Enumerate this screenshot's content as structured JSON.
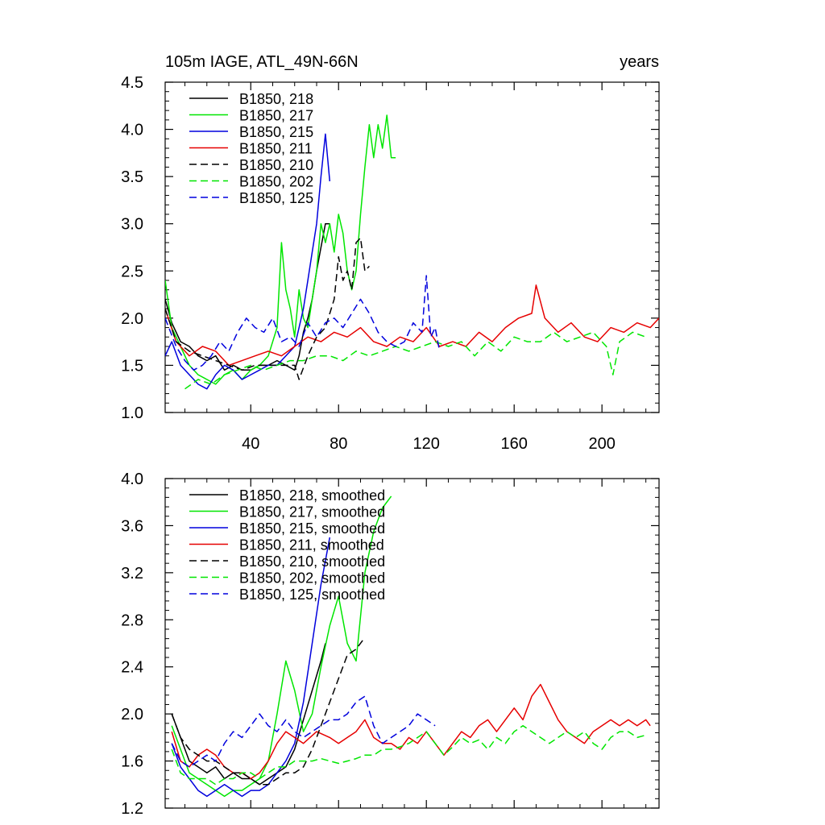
{
  "figure": {
    "title_left": "105m IAGE, ATL_49N-66N",
    "title_right": "years"
  },
  "colors": {
    "black": "#000000",
    "green": "#00e600",
    "blue": "#0000dd",
    "red": "#e60000"
  },
  "chart_data": [
    {
      "type": "line",
      "title": "105m IAGE, ATL_49N-66N",
      "units": "years",
      "xlim": [
        1,
        226
      ],
      "ylim": [
        1.0,
        4.5
      ],
      "xticks": [
        40,
        80,
        120,
        160,
        200
      ],
      "yticks": [
        1.0,
        1.5,
        2.0,
        2.5,
        3.0,
        3.5,
        4.0,
        4.5
      ],
      "ytick_labels": [
        "1.0",
        "1.5",
        "2.0",
        "2.5",
        "3.0",
        "3.5",
        "4.0",
        "4.5"
      ],
      "legend_position": "top-left",
      "series": [
        {
          "name": "B1850, 218",
          "color": "black",
          "dash": false,
          "x": [
            1,
            4,
            8,
            12,
            16,
            20,
            24,
            28,
            32,
            36,
            40,
            44,
            48,
            52,
            56,
            60,
            62,
            64,
            66,
            68,
            70,
            72,
            74,
            76
          ],
          "y": [
            2.2,
            1.95,
            1.75,
            1.7,
            1.6,
            1.55,
            1.6,
            1.45,
            1.5,
            1.45,
            1.45,
            1.5,
            1.5,
            1.55,
            1.5,
            1.45,
            1.6,
            1.85,
            2.0,
            2.2,
            2.5,
            2.75,
            3.0,
            3.0
          ]
        },
        {
          "name": "B1850, 217",
          "color": "green",
          "dash": false,
          "x": [
            1,
            4,
            8,
            12,
            16,
            20,
            24,
            28,
            32,
            36,
            40,
            44,
            48,
            52,
            54,
            56,
            58,
            60,
            62,
            64,
            66,
            68,
            70,
            72,
            74,
            76,
            78,
            80,
            82,
            84,
            86,
            88,
            90,
            92,
            94,
            96,
            98,
            100,
            102,
            104,
            106
          ],
          "y": [
            2.4,
            1.9,
            1.7,
            1.5,
            1.4,
            1.35,
            1.3,
            1.4,
            1.45,
            1.35,
            1.45,
            1.5,
            1.6,
            1.9,
            2.8,
            2.3,
            2.1,
            1.8,
            2.3,
            2.0,
            1.9,
            2.2,
            2.5,
            3.0,
            2.8,
            3.0,
            2.7,
            3.1,
            2.9,
            2.5,
            2.3,
            2.5,
            3.1,
            3.6,
            4.05,
            3.7,
            4.05,
            3.8,
            4.15,
            3.7,
            3.7
          ]
        },
        {
          "name": "B1850, 215",
          "color": "blue",
          "dash": false,
          "x": [
            1,
            4,
            8,
            12,
            16,
            20,
            24,
            28,
            32,
            36,
            40,
            44,
            48,
            52,
            56,
            60,
            62,
            64,
            66,
            68,
            70,
            72,
            74,
            75,
            76
          ],
          "y": [
            1.6,
            1.75,
            1.5,
            1.4,
            1.3,
            1.25,
            1.4,
            1.5,
            1.45,
            1.35,
            1.4,
            1.45,
            1.5,
            1.5,
            1.6,
            1.7,
            1.9,
            2.1,
            2.4,
            2.7,
            3.0,
            3.5,
            3.95,
            3.7,
            3.45
          ]
        },
        {
          "name": "B1850, 211",
          "color": "red",
          "dash": false,
          "x": [
            1,
            6,
            12,
            18,
            24,
            30,
            36,
            42,
            48,
            54,
            60,
            66,
            72,
            78,
            84,
            90,
            96,
            102,
            108,
            114,
            120,
            126,
            132,
            138,
            144,
            150,
            156,
            162,
            168,
            170,
            174,
            180,
            186,
            192,
            198,
            204,
            210,
            216,
            222,
            226
          ],
          "y": [
            2.1,
            1.75,
            1.6,
            1.7,
            1.65,
            1.5,
            1.55,
            1.6,
            1.65,
            1.6,
            1.7,
            1.8,
            1.75,
            1.85,
            1.8,
            1.9,
            1.75,
            1.7,
            1.8,
            1.75,
            1.9,
            1.7,
            1.75,
            1.7,
            1.85,
            1.75,
            1.9,
            2.0,
            2.05,
            2.35,
            2.0,
            1.85,
            1.95,
            1.8,
            1.75,
            1.9,
            1.85,
            1.95,
            1.9,
            2.0
          ]
        },
        {
          "name": "B1850, 210",
          "color": "black",
          "dash": true,
          "x": [
            1,
            6,
            12,
            18,
            24,
            30,
            36,
            42,
            48,
            54,
            60,
            62,
            66,
            70,
            74,
            78,
            80,
            82,
            84,
            86,
            88,
            90,
            92,
            94
          ],
          "y": [
            2.1,
            1.75,
            1.65,
            1.6,
            1.55,
            1.5,
            1.45,
            1.5,
            1.5,
            1.5,
            1.5,
            1.35,
            1.6,
            1.8,
            1.9,
            2.2,
            2.65,
            2.4,
            2.5,
            2.3,
            2.8,
            2.85,
            2.5,
            2.55
          ]
        },
        {
          "name": "B1850, 202",
          "color": "green",
          "dash": true,
          "x": [
            10,
            16,
            22,
            28,
            34,
            40,
            46,
            52,
            58,
            64,
            70,
            76,
            82,
            88,
            94,
            100,
            106,
            112,
            118,
            124,
            130,
            136,
            142,
            148,
            154,
            160,
            166,
            172,
            178,
            184,
            190,
            196,
            202,
            205,
            208,
            214,
            220
          ],
          "y": [
            1.25,
            1.35,
            1.3,
            1.4,
            1.45,
            1.5,
            1.45,
            1.5,
            1.55,
            1.55,
            1.6,
            1.6,
            1.55,
            1.65,
            1.6,
            1.65,
            1.7,
            1.65,
            1.7,
            1.75,
            1.7,
            1.75,
            1.6,
            1.75,
            1.65,
            1.8,
            1.75,
            1.75,
            1.85,
            1.75,
            1.8,
            1.85,
            1.7,
            1.4,
            1.75,
            1.85,
            1.8
          ]
        },
        {
          "name": "B1850, 125",
          "color": "blue",
          "dash": true,
          "x": [
            1,
            6,
            10,
            14,
            18,
            22,
            26,
            30,
            34,
            38,
            42,
            46,
            50,
            54,
            58,
            62,
            66,
            70,
            74,
            78,
            82,
            86,
            90,
            94,
            98,
            102,
            106,
            110,
            114,
            118,
            120,
            122,
            124,
            126
          ],
          "y": [
            2.0,
            1.7,
            1.55,
            1.45,
            1.5,
            1.6,
            1.75,
            1.65,
            1.85,
            2.0,
            1.9,
            1.85,
            2.0,
            1.75,
            1.8,
            1.7,
            1.95,
            1.8,
            1.95,
            2.0,
            1.9,
            2.05,
            2.2,
            2.05,
            1.85,
            1.75,
            1.7,
            1.75,
            1.95,
            1.85,
            2.45,
            1.8,
            1.9,
            1.65
          ]
        }
      ]
    },
    {
      "type": "line",
      "xlim": [
        1,
        226
      ],
      "ylim": [
        1.2,
        4.0
      ],
      "xticks": [
        40,
        80,
        120,
        160,
        200
      ],
      "yticks": [
        1.2,
        1.6,
        2.0,
        2.4,
        2.8,
        3.2,
        3.6,
        4.0
      ],
      "ytick_labels": [
        "1.2",
        "1.6",
        "2.0",
        "2.4",
        "2.8",
        "3.2",
        "3.6",
        "4.0"
      ],
      "legend_position": "top-left",
      "series": [
        {
          "name": "B1850, 218, smoothed",
          "color": "black",
          "dash": false,
          "x": [
            4,
            8,
            12,
            16,
            20,
            24,
            28,
            32,
            36,
            40,
            44,
            48,
            52,
            56,
            60,
            64,
            68,
            72,
            74
          ],
          "y": [
            2.0,
            1.8,
            1.6,
            1.55,
            1.5,
            1.55,
            1.45,
            1.5,
            1.45,
            1.45,
            1.4,
            1.45,
            1.5,
            1.55,
            1.7,
            1.95,
            2.2,
            2.45,
            2.6
          ]
        },
        {
          "name": "B1850, 217, smoothed",
          "color": "green",
          "dash": false,
          "x": [
            4,
            8,
            12,
            16,
            20,
            24,
            28,
            32,
            36,
            40,
            44,
            48,
            52,
            56,
            60,
            64,
            68,
            72,
            76,
            80,
            84,
            88,
            92,
            96,
            100,
            104
          ],
          "y": [
            1.9,
            1.7,
            1.5,
            1.45,
            1.4,
            1.35,
            1.3,
            1.35,
            1.35,
            1.4,
            1.45,
            1.6,
            2.0,
            2.45,
            2.2,
            1.85,
            2.0,
            2.4,
            2.75,
            3.0,
            2.6,
            2.45,
            3.2,
            3.55,
            3.75,
            3.85
          ]
        },
        {
          "name": "B1850, 215, smoothed",
          "color": "blue",
          "dash": false,
          "x": [
            4,
            8,
            12,
            16,
            20,
            24,
            28,
            32,
            36,
            40,
            44,
            48,
            52,
            56,
            60,
            64,
            68,
            72,
            76
          ],
          "y": [
            1.75,
            1.55,
            1.45,
            1.35,
            1.3,
            1.35,
            1.4,
            1.35,
            1.3,
            1.35,
            1.35,
            1.4,
            1.5,
            1.6,
            1.75,
            2.1,
            2.6,
            3.1,
            3.5
          ]
        },
        {
          "name": "B1850, 211, smoothed",
          "color": "red",
          "dash": false,
          "x": [
            4,
            8,
            12,
            16,
            20,
            24,
            28,
            32,
            36,
            40,
            44,
            48,
            52,
            56,
            60,
            64,
            70,
            76,
            80,
            84,
            88,
            92,
            96,
            100,
            104,
            108,
            112,
            116,
            120,
            124,
            128,
            132,
            136,
            140,
            144,
            148,
            152,
            156,
            160,
            164,
            168,
            172,
            176,
            180,
            184,
            188,
            192,
            196,
            200,
            204,
            208,
            212,
            216,
            220,
            222
          ],
          "y": [
            1.85,
            1.6,
            1.55,
            1.65,
            1.7,
            1.65,
            1.55,
            1.5,
            1.5,
            1.45,
            1.5,
            1.6,
            1.75,
            1.85,
            1.8,
            1.75,
            1.85,
            1.8,
            1.75,
            1.8,
            1.85,
            1.95,
            1.8,
            1.75,
            1.75,
            1.7,
            1.8,
            1.75,
            1.85,
            1.75,
            1.65,
            1.75,
            1.85,
            1.8,
            1.9,
            1.95,
            1.85,
            1.95,
            2.05,
            1.95,
            2.15,
            2.25,
            2.1,
            1.95,
            1.85,
            1.8,
            1.75,
            1.85,
            1.9,
            1.95,
            1.9,
            1.95,
            1.9,
            1.95,
            1.9
          ]
        },
        {
          "name": "B1850, 210, smoothed",
          "color": "black",
          "dash": true,
          "x": [
            4,
            8,
            12,
            16,
            20,
            24,
            28,
            32,
            36,
            40,
            44,
            48,
            52,
            56,
            60,
            64,
            68,
            72,
            76,
            80,
            84,
            88,
            92
          ],
          "y": [
            2.0,
            1.8,
            1.7,
            1.65,
            1.6,
            1.6,
            1.55,
            1.5,
            1.5,
            1.45,
            1.4,
            1.4,
            1.45,
            1.5,
            1.5,
            1.55,
            1.7,
            1.9,
            2.1,
            2.3,
            2.5,
            2.55,
            2.65
          ]
        },
        {
          "name": "B1850, 202, smoothed",
          "color": "green",
          "dash": true,
          "x": [
            4,
            8,
            12,
            16,
            20,
            24,
            28,
            32,
            36,
            40,
            44,
            48,
            52,
            56,
            60,
            64,
            68,
            72,
            76,
            80,
            84,
            88,
            92,
            96,
            100,
            104,
            108,
            112,
            116,
            120,
            124,
            128,
            132,
            136,
            140,
            144,
            148,
            152,
            156,
            160,
            164,
            168,
            172,
            176,
            180,
            184,
            188,
            192,
            196,
            200,
            204,
            208,
            212,
            216,
            220
          ],
          "y": [
            1.7,
            1.5,
            1.45,
            1.45,
            1.45,
            1.4,
            1.45,
            1.45,
            1.5,
            1.5,
            1.45,
            1.5,
            1.55,
            1.55,
            1.6,
            1.6,
            1.6,
            1.62,
            1.6,
            1.58,
            1.6,
            1.62,
            1.65,
            1.65,
            1.7,
            1.7,
            1.72,
            1.75,
            1.8,
            1.85,
            1.75,
            1.65,
            1.72,
            1.8,
            1.75,
            1.78,
            1.7,
            1.8,
            1.75,
            1.85,
            1.9,
            1.85,
            1.8,
            1.75,
            1.8,
            1.85,
            1.8,
            1.85,
            1.75,
            1.7,
            1.8,
            1.85,
            1.85,
            1.8,
            1.82
          ]
        },
        {
          "name": "B1850, 125, smoothed",
          "color": "blue",
          "dash": true,
          "x": [
            4,
            8,
            12,
            16,
            20,
            24,
            28,
            32,
            36,
            40,
            44,
            48,
            52,
            56,
            60,
            64,
            68,
            72,
            76,
            80,
            84,
            88,
            92,
            96,
            100,
            104,
            108,
            112,
            116,
            120,
            124
          ],
          "y": [
            1.75,
            1.6,
            1.55,
            1.6,
            1.65,
            1.6,
            1.75,
            1.85,
            1.8,
            1.9,
            2.0,
            1.9,
            1.85,
            1.95,
            1.85,
            1.8,
            1.85,
            1.9,
            1.95,
            1.95,
            2.0,
            2.1,
            2.15,
            1.9,
            1.75,
            1.8,
            1.85,
            1.9,
            2.0,
            1.95,
            1.9
          ]
        }
      ]
    }
  ]
}
